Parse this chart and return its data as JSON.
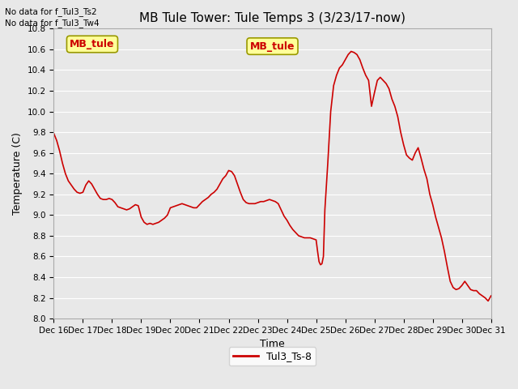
{
  "title": "MB Tule Tower: Tule Temps 3 (3/23/17-now)",
  "xlabel": "Time",
  "ylabel": "Temperature (C)",
  "ylim": [
    8.0,
    10.8
  ],
  "yticks": [
    8.0,
    8.2,
    8.4,
    8.6,
    8.8,
    9.0,
    9.2,
    9.4,
    9.6,
    9.8,
    10.0,
    10.2,
    10.4,
    10.6,
    10.8
  ],
  "xtick_labels": [
    "Dec 16",
    "Dec 17",
    "Dec 18",
    "Dec 19",
    "Dec 20",
    "Dec 21",
    "Dec 22",
    "Dec 23",
    "Dec 24",
    "Dec 25",
    "Dec 26",
    "Dec 27",
    "Dec 28",
    "Dec 29",
    "Dec 30",
    "Dec 31"
  ],
  "line_color": "#cc0000",
  "line_width": 1.2,
  "legend_label": "Tul3_Ts-8",
  "no_data_text": [
    "No data for f_Tul3_Ts2",
    "No data for f_Tul3_Tw4"
  ],
  "mb_tule_box_text": "MB_tule",
  "mb_tule_box_color": "#ffff99",
  "mb_tule_border_color": "#999900",
  "mb_tule_text_color": "#cc0000",
  "background_color": "#e8e8e8",
  "grid_color": "#ffffff",
  "title_fontsize": 11,
  "axis_fontsize": 9,
  "tick_fontsize": 7.5,
  "x_data": [
    0.0,
    0.1,
    0.2,
    0.3,
    0.4,
    0.5,
    0.6,
    0.7,
    0.8,
    0.9,
    1.0,
    1.1,
    1.2,
    1.3,
    1.4,
    1.5,
    1.6,
    1.7,
    1.8,
    1.9,
    2.0,
    2.1,
    2.2,
    2.3,
    2.4,
    2.5,
    2.6,
    2.7,
    2.8,
    2.9,
    3.0,
    3.1,
    3.2,
    3.3,
    3.4,
    3.5,
    3.6,
    3.7,
    3.8,
    3.9,
    4.0,
    4.1,
    4.2,
    4.3,
    4.4,
    4.5,
    4.6,
    4.7,
    4.8,
    4.9,
    5.0,
    5.1,
    5.2,
    5.3,
    5.4,
    5.5,
    5.6,
    5.7,
    5.8,
    5.9,
    6.0,
    6.1,
    6.2,
    6.3,
    6.4,
    6.5,
    6.6,
    6.7,
    6.8,
    6.9,
    7.0,
    7.1,
    7.2,
    7.3,
    7.4,
    7.5,
    7.6,
    7.7,
    7.8,
    7.9,
    8.0,
    8.1,
    8.2,
    8.3,
    8.4,
    8.5,
    8.6,
    8.7,
    8.8,
    8.9,
    9.0,
    9.05,
    9.1,
    9.15,
    9.2,
    9.25,
    9.3,
    9.4,
    9.5,
    9.6,
    9.7,
    9.8,
    9.9,
    10.0,
    10.1,
    10.2,
    10.3,
    10.4,
    10.5,
    10.6,
    10.7,
    10.8,
    10.9,
    11.0,
    11.1,
    11.2,
    11.3,
    11.4,
    11.5,
    11.6,
    11.7,
    11.8,
    11.9,
    12.0,
    12.1,
    12.2,
    12.3,
    12.4,
    12.5,
    12.6,
    12.7,
    12.8,
    12.9,
    13.0,
    13.1,
    13.2,
    13.3,
    13.4,
    13.5,
    13.6,
    13.7,
    13.8,
    13.9,
    14.0,
    14.1,
    14.2,
    14.3,
    14.4,
    14.5,
    14.6,
    14.7,
    14.8,
    14.9,
    15.0
  ],
  "y_data": [
    9.79,
    9.72,
    9.62,
    9.5,
    9.4,
    9.33,
    9.29,
    9.25,
    9.22,
    9.21,
    9.22,
    9.29,
    9.33,
    9.3,
    9.25,
    9.2,
    9.16,
    9.15,
    9.15,
    9.16,
    9.15,
    9.12,
    9.08,
    9.07,
    9.06,
    9.05,
    9.06,
    9.08,
    9.1,
    9.09,
    8.98,
    8.93,
    8.91,
    8.92,
    8.91,
    8.92,
    8.93,
    8.95,
    8.97,
    9.0,
    9.07,
    9.08,
    9.09,
    9.1,
    9.11,
    9.1,
    9.09,
    9.08,
    9.07,
    9.07,
    9.1,
    9.13,
    9.15,
    9.17,
    9.2,
    9.22,
    9.25,
    9.3,
    9.35,
    9.38,
    9.43,
    9.42,
    9.38,
    9.3,
    9.22,
    9.15,
    9.12,
    9.11,
    9.11,
    9.11,
    9.12,
    9.13,
    9.13,
    9.14,
    9.15,
    9.14,
    9.13,
    9.11,
    9.05,
    8.99,
    8.95,
    8.9,
    8.86,
    8.83,
    8.8,
    8.79,
    8.78,
    8.78,
    8.78,
    8.77,
    8.76,
    8.65,
    8.55,
    8.52,
    8.53,
    8.6,
    9.05,
    9.5,
    10.0,
    10.25,
    10.35,
    10.42,
    10.45,
    10.5,
    10.55,
    10.58,
    10.57,
    10.55,
    10.5,
    10.42,
    10.35,
    10.3,
    10.05,
    10.18,
    10.3,
    10.33,
    10.3,
    10.27,
    10.22,
    10.12,
    10.05,
    9.95,
    9.8,
    9.68,
    9.58,
    9.55,
    9.53,
    9.6,
    9.65,
    9.55,
    9.44,
    9.35,
    9.2,
    9.1,
    8.98,
    8.88,
    8.78,
    8.65,
    8.5,
    8.36,
    8.3,
    8.28,
    8.29,
    8.32,
    8.36,
    8.32,
    8.28,
    8.27,
    8.27,
    8.24,
    8.22,
    8.2,
    8.17,
    8.22
  ]
}
